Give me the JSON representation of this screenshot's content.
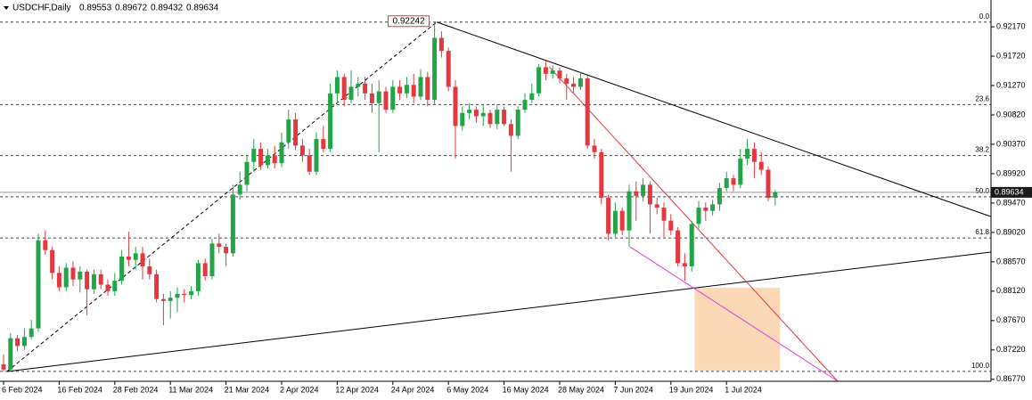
{
  "chart_data": {
    "type": "candlestick",
    "symbol": "USDCHF,Daily",
    "header_ohlc": [
      0.89553,
      0.89672,
      0.89432,
      0.89634
    ],
    "up_color": "#22a447",
    "down_color": "#e3383f",
    "categories": [
      "6 Feb 2024",
      null,
      null,
      null,
      null,
      null,
      null,
      null,
      "16 Feb 2024",
      null,
      null,
      null,
      null,
      null,
      null,
      null,
      "28 Feb 2024",
      null,
      null,
      null,
      null,
      null,
      null,
      null,
      "11 Mar 2024",
      null,
      null,
      null,
      null,
      null,
      null,
      null,
      "21 Mar 2024",
      null,
      null,
      null,
      null,
      null,
      null,
      null,
      "2 Apr 2024",
      null,
      null,
      null,
      null,
      null,
      null,
      null,
      "12 Apr 2024",
      null,
      null,
      null,
      null,
      null,
      null,
      null,
      "24 Apr 2024",
      null,
      null,
      null,
      null,
      null,
      null,
      null,
      "6 May 2024",
      null,
      null,
      null,
      null,
      null,
      null,
      null,
      "16 May 2024",
      null,
      null,
      null,
      null,
      null,
      null,
      null,
      "28 May 2024",
      null,
      null,
      null,
      null,
      null,
      null,
      null,
      "7 Jun 2024",
      null,
      null,
      null,
      null,
      null,
      null,
      null,
      "19 Jun 2024",
      null,
      null,
      null,
      null,
      null,
      null,
      null,
      "1 Jul 2024",
      null,
      null,
      null,
      null,
      null,
      null,
      null
    ],
    "open": [
      0.87,
      0.8692,
      0.874,
      0.8728,
      0.8742,
      0.8755,
      0.889,
      0.8875,
      0.884,
      0.8818,
      0.8848,
      0.883,
      0.8842,
      0.8815,
      0.8838,
      0.8822,
      0.8812,
      0.8828,
      0.8865,
      0.886,
      0.887,
      0.885,
      0.8838,
      0.88,
      0.8797,
      0.8802,
      0.8808,
      0.8806,
      0.8812,
      0.8855,
      0.8835,
      0.8885,
      0.888,
      0.887,
      0.896,
      0.8975,
      0.901,
      0.903,
      0.9005,
      0.902,
      0.9008,
      0.904,
      0.9075,
      0.9035,
      0.902,
      0.8995,
      0.9045,
      0.903,
      0.9115,
      0.914,
      0.9105,
      0.9125,
      0.913,
      0.9115,
      0.91,
      0.9118,
      0.909,
      0.9125,
      0.9115,
      0.9128,
      0.911,
      0.914,
      0.9105,
      0.92,
      0.918,
      0.9125,
      0.9065,
      0.9085,
      0.909,
      0.908,
      0.9085,
      0.9068,
      0.909,
      0.9068,
      0.905,
      0.909,
      0.9105,
      0.9115,
      0.9155,
      0.9145,
      0.915,
      0.9138,
      0.913,
      0.9125,
      0.9138,
      0.9035,
      0.9025,
      0.8955,
      0.89,
      0.8935,
      0.8905,
      0.8965,
      0.8958,
      0.8975,
      0.8945,
      0.894,
      0.892,
      0.8905,
      0.8855,
      0.885,
      0.8915,
      0.894,
      0.8935,
      0.8945,
      0.897,
      0.8985,
      0.8975,
      0.9015,
      0.903,
      0.901,
      0.8998,
      0.89553
    ],
    "high": [
      0.8715,
      0.8748,
      0.8745,
      0.8755,
      0.8768,
      0.89,
      0.8905,
      0.888,
      0.885,
      0.8855,
      0.8858,
      0.885,
      0.8845,
      0.8845,
      0.8845,
      0.883,
      0.884,
      0.8875,
      0.8903,
      0.888,
      0.888,
      0.8862,
      0.8845,
      0.8808,
      0.8812,
      0.8818,
      0.8815,
      0.882,
      0.886,
      0.8862,
      0.8892,
      0.89,
      0.8885,
      0.8975,
      0.8995,
      0.902,
      0.9045,
      0.904,
      0.903,
      0.9035,
      0.9055,
      0.909,
      0.9085,
      0.9045,
      0.903,
      0.9055,
      0.9065,
      0.913,
      0.915,
      0.9145,
      0.915,
      0.914,
      0.914,
      0.913,
      0.9135,
      0.9125,
      0.9135,
      0.9135,
      0.914,
      0.9145,
      0.9152,
      0.9148,
      0.92242,
      0.921,
      0.9185,
      0.9135,
      0.9095,
      0.91,
      0.9095,
      0.9098,
      0.909,
      0.9098,
      0.9095,
      0.9075,
      0.9095,
      0.9115,
      0.913,
      0.916,
      0.9165,
      0.9158,
      0.9155,
      0.9145,
      0.914,
      0.9148,
      0.9142,
      0.9045,
      0.903,
      0.896,
      0.8948,
      0.894,
      0.8975,
      0.898,
      0.8985,
      0.898,
      0.8955,
      0.8948,
      0.893,
      0.891,
      0.887,
      0.892,
      0.895,
      0.8948,
      0.8952,
      0.8978,
      0.8995,
      0.899,
      0.903,
      0.9045,
      0.904,
      0.9025,
      0.9003,
      0.89672
    ],
    "low": [
      0.8689,
      0.8688,
      0.872,
      0.8722,
      0.8738,
      0.875,
      0.8868,
      0.883,
      0.8812,
      0.8812,
      0.882,
      0.881,
      0.8775,
      0.8808,
      0.8815,
      0.8805,
      0.8805,
      0.8822,
      0.885,
      0.8845,
      0.883,
      0.883,
      0.8795,
      0.876,
      0.877,
      0.878,
      0.8795,
      0.88,
      0.8805,
      0.8828,
      0.883,
      0.887,
      0.885,
      0.8865,
      0.8952,
      0.8965,
      0.8995,
      0.8998,
      0.9,
      0.9,
      0.9002,
      0.903,
      0.9028,
      0.901,
      0.899,
      0.899,
      0.9025,
      0.9025,
      0.91,
      0.9095,
      0.91,
      0.911,
      0.9105,
      0.9085,
      0.9025,
      0.9085,
      0.9085,
      0.9105,
      0.9108,
      0.91,
      0.9105,
      0.9095,
      0.9098,
      0.917,
      0.9118,
      0.9015,
      0.9058,
      0.9075,
      0.907,
      0.9065,
      0.9062,
      0.906,
      0.9065,
      0.8995,
      0.9045,
      0.9085,
      0.91,
      0.911,
      0.9135,
      0.9138,
      0.913,
      0.9105,
      0.9115,
      0.912,
      0.903,
      0.9015,
      0.8945,
      0.889,
      0.8895,
      0.8898,
      0.888,
      0.892,
      0.895,
      0.89,
      0.893,
      0.8895,
      0.8898,
      0.885,
      0.8828,
      0.8842,
      0.8908,
      0.892,
      0.8928,
      0.8935,
      0.8965,
      0.8965,
      0.897,
      0.9005,
      0.8985,
      0.899,
      0.895,
      0.89432
    ],
    "close": [
      0.8692,
      0.874,
      0.8728,
      0.8742,
      0.8755,
      0.889,
      0.8875,
      0.884,
      0.8818,
      0.8848,
      0.883,
      0.8842,
      0.8815,
      0.8838,
      0.8822,
      0.8812,
      0.8828,
      0.8865,
      0.886,
      0.887,
      0.885,
      0.8838,
      0.88,
      0.8797,
      0.8802,
      0.8808,
      0.8806,
      0.8812,
      0.8855,
      0.8835,
      0.8885,
      0.888,
      0.887,
      0.896,
      0.8975,
      0.901,
      0.903,
      0.9005,
      0.902,
      0.9008,
      0.904,
      0.9075,
      0.9035,
      0.902,
      0.8995,
      0.9045,
      0.903,
      0.9115,
      0.914,
      0.9105,
      0.9125,
      0.913,
      0.9115,
      0.91,
      0.9118,
      0.909,
      0.9125,
      0.9115,
      0.9128,
      0.911,
      0.914,
      0.9105,
      0.92,
      0.918,
      0.9125,
      0.9065,
      0.9085,
      0.909,
      0.908,
      0.9085,
      0.9068,
      0.909,
      0.9068,
      0.905,
      0.909,
      0.9105,
      0.9115,
      0.9155,
      0.9145,
      0.915,
      0.9138,
      0.913,
      0.9125,
      0.9138,
      0.9035,
      0.9025,
      0.8955,
      0.89,
      0.8935,
      0.8905,
      0.8965,
      0.8958,
      0.8975,
      0.8945,
      0.894,
      0.892,
      0.8905,
      0.8855,
      0.885,
      0.8915,
      0.894,
      0.8935,
      0.8945,
      0.897,
      0.8985,
      0.8975,
      0.9015,
      0.903,
      0.901,
      0.8998,
      0.8955,
      0.89634
    ],
    "ylim": [
      0.8674,
      0.9258
    ],
    "yticks": [
      {
        "value": 0.9217,
        "label": "0.92170"
      },
      {
        "value": 0.9172,
        "label": "0.91720"
      },
      {
        "value": 0.9127,
        "label": "0.91270"
      },
      {
        "value": 0.9082,
        "label": "0.90820"
      },
      {
        "value": 0.9037,
        "label": "0.90370"
      },
      {
        "value": 0.8992,
        "label": "0.89920"
      },
      {
        "value": 0.8947,
        "label": "0.89470"
      },
      {
        "value": 0.8902,
        "label": "0.89020"
      },
      {
        "value": 0.8857,
        "label": "0.88570"
      },
      {
        "value": 0.8812,
        "label": "0.88120"
      },
      {
        "value": 0.8767,
        "label": "0.87670"
      },
      {
        "value": 0.8722,
        "label": "0.87220"
      },
      {
        "value": 0.8677,
        "label": "0.86770"
      }
    ],
    "current_price": 0.89634,
    "fib": {
      "levels": [
        {
          "pct": "0.0",
          "price": 0.92242
        },
        {
          "pct": "23.6",
          "price": 0.90979
        },
        {
          "pct": "38.2",
          "price": 0.90198
        },
        {
          "pct": "50.0",
          "price": 0.89567
        },
        {
          "pct": "61.8",
          "price": 0.88935
        },
        {
          "pct": "100.0",
          "price": 0.86891
        }
      ],
      "color": "#444",
      "box_color": "#d23a4a"
    },
    "trendlines": [
      {
        "color": "#000000",
        "dash": false,
        "x": [
          62.3,
          142
        ],
        "y": [
          0.92242,
          0.89264
        ]
      },
      {
        "color": "#000000",
        "dash": false,
        "x": [
          0.5,
          142
        ],
        "y": [
          0.8689,
          0.88719
        ]
      },
      {
        "color": "#000000",
        "dash": true,
        "x": [
          0.5,
          62.3
        ],
        "y": [
          0.8689,
          0.92242
        ]
      },
      {
        "color": "#e3383f",
        "dash": false,
        "x": [
          78.5,
          120
        ],
        "y": [
          0.91556,
          0.8674
        ]
      },
      {
        "color": "#e040e0",
        "dash": false,
        "x": [
          90.1,
          120
        ],
        "y": [
          0.88801,
          0.8674
        ]
      }
    ],
    "zones": [
      {
        "color": "#fcd9b6",
        "x": [
          99.4,
          111.7
        ],
        "y": [
          0.86905,
          0.88173
        ]
      }
    ]
  }
}
